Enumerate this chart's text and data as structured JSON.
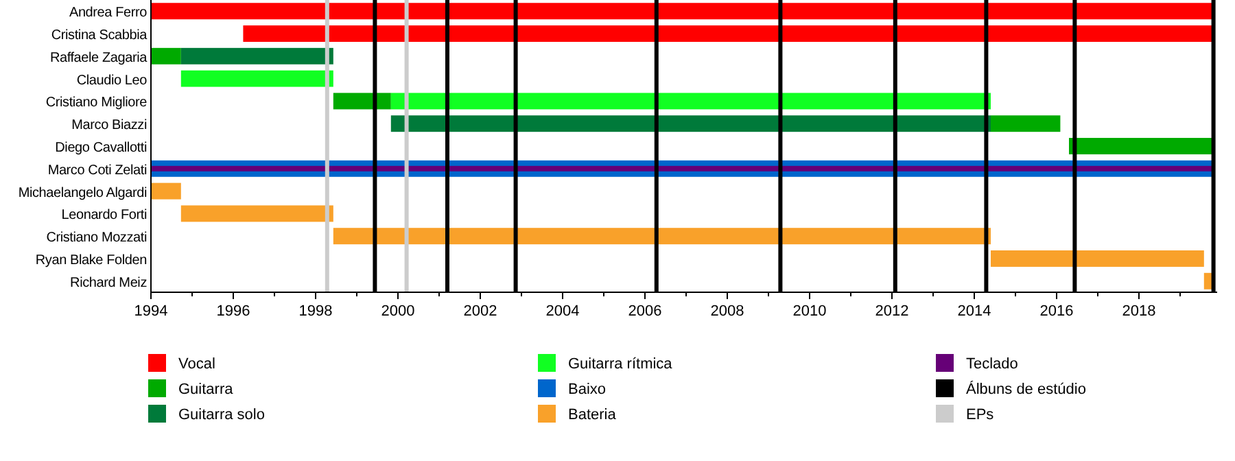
{
  "chart_data": {
    "type": "bar",
    "orientation": "horizontal",
    "legend": "bottom",
    "categories": [
      "Andrea Ferro",
      "Cristina Scabbia",
      "Raffaele Zagaria",
      "Claudio Leo",
      "Cristiano Migliore",
      "Marco Biazzi",
      "Diego Cavallotti",
      "Marco Coti Zelati",
      "Michaelangelo Algardi",
      "Leonardo Forti",
      "Cristiano Mozzati",
      "Ryan Blake Folden",
      "Richard Meiz"
    ],
    "xlim": [
      1994,
      2019.9
    ],
    "xticks": [
      1994,
      {
        "value": 1995,
        "label": null
      },
      1996,
      {
        "value": 1997,
        "label": null
      },
      1998,
      {
        "value": 1999,
        "label": null
      },
      2000,
      {
        "value": 2001,
        "label": null
      },
      2002,
      {
        "value": 2003,
        "label": null
      },
      2004,
      {
        "value": 2005,
        "label": null
      },
      2006,
      {
        "value": 2007,
        "label": null
      },
      2008,
      {
        "value": 2009,
        "label": null
      },
      2010,
      {
        "value": 2011,
        "label": null
      },
      2012,
      {
        "value": 2013,
        "label": null
      },
      2014,
      {
        "value": 2015,
        "label": null
      },
      2016,
      {
        "value": 2017,
        "label": null
      },
      2018,
      {
        "value": 2019,
        "label": null
      }
    ],
    "series": [
      {
        "name": "Vocal",
        "color": "#ff0000",
        "base": [
          1994,
          1996.24,
          null,
          null,
          null,
          null,
          null,
          null,
          null,
          null,
          null,
          null,
          null
        ],
        "values": [
          25.83,
          23.59,
          null,
          null,
          null,
          null,
          null,
          null,
          null,
          null,
          null,
          null,
          null
        ]
      },
      {
        "name": "Guitarra",
        "color": "#00aa00",
        "base": [
          null,
          null,
          1994,
          null,
          1998.43,
          2014.4,
          2016.3,
          null,
          null,
          null,
          null,
          null,
          null
        ],
        "values": [
          null,
          null,
          0.73,
          null,
          1.4,
          1.69,
          3.53,
          null,
          null,
          null,
          null,
          null,
          null
        ]
      },
      {
        "name": "Guitarra solo",
        "color": "#007a3a",
        "base": [
          null,
          null,
          1994.73,
          null,
          null,
          1999.83,
          null,
          null,
          null,
          null,
          null,
          null,
          null
        ],
        "values": [
          null,
          null,
          3.7,
          null,
          null,
          14.57,
          null,
          null,
          null,
          null,
          null,
          null,
          null
        ]
      },
      {
        "name": "Guitarra rítmica",
        "color": "#11ff22",
        "base": [
          null,
          null,
          null,
          1994.73,
          1999.83,
          null,
          null,
          null,
          null,
          null,
          null,
          null,
          null
        ],
        "values": [
          null,
          null,
          null,
          3.7,
          14.57,
          null,
          null,
          null,
          null,
          null,
          null,
          null,
          null
        ]
      },
      {
        "name": "Baixo",
        "color": "#0066cc",
        "base": [
          null,
          null,
          null,
          null,
          null,
          null,
          null,
          1994,
          null,
          null,
          null,
          null,
          null
        ],
        "values": [
          null,
          null,
          null,
          null,
          null,
          null,
          null,
          25.83,
          null,
          null,
          null,
          null,
          null
        ]
      },
      {
        "name": "Bateria",
        "color": "#f9a12a",
        "base": [
          null,
          null,
          null,
          null,
          null,
          null,
          null,
          null,
          1994,
          1994.73,
          1998.43,
          2014.4,
          2019.58
        ],
        "values": [
          null,
          null,
          null,
          null,
          null,
          null,
          null,
          null,
          0.73,
          3.7,
          15.97,
          5.18,
          0.25
        ]
      },
      {
        "name": "Teclado",
        "color": "#660077",
        "base": [
          null,
          null,
          null,
          null,
          null,
          null,
          null,
          1994,
          null,
          null,
          null,
          null,
          null
        ],
        "values": [
          null,
          null,
          null,
          null,
          null,
          null,
          null,
          25.83,
          null,
          null,
          null,
          null,
          null
        ]
      }
    ],
    "ref_lines": [
      {
        "axis": "x",
        "value": 1998.28,
        "label": "EPs",
        "color": "#cccccc"
      },
      {
        "axis": "x",
        "value": 2000.21,
        "color": "#cccccc"
      },
      {
        "axis": "x",
        "value": 1999.44,
        "label": "Álbuns de estúdio",
        "color": "#000000"
      },
      {
        "axis": "x",
        "value": 2001.2,
        "color": "#000000"
      },
      {
        "axis": "x",
        "value": 2002.86,
        "color": "#000000"
      },
      {
        "axis": "x",
        "value": 2006.28,
        "color": "#000000"
      },
      {
        "axis": "x",
        "value": 2009.29,
        "color": "#000000"
      },
      {
        "axis": "x",
        "value": 2012.08,
        "color": "#000000"
      },
      {
        "axis": "x",
        "value": 2014.29,
        "color": "#000000"
      },
      {
        "axis": "x",
        "value": 2016.44,
        "color": "#000000"
      },
      {
        "axis": "x",
        "value": 2019.81,
        "color": "#000000"
      }
    ]
  }
}
